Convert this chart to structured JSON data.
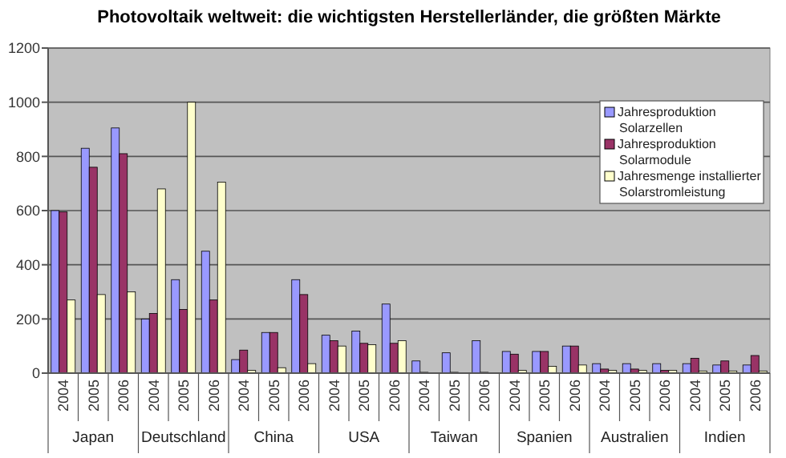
{
  "chart_data": {
    "type": "bar",
    "title": "Photovoltaik weltweit: die wichtigsten Herstellerländer, die größten Märkte",
    "categories": [
      "2004",
      "2005",
      "2006",
      "2004",
      "2005",
      "2006",
      "2004",
      "2005",
      "2006",
      "2004",
      "2005",
      "2006",
      "2004",
      "2005",
      "2006",
      "2004",
      "2005",
      "2006",
      "2004",
      "2005",
      "2006",
      "2004",
      "2005",
      "2006"
    ],
    "series": [
      {
        "name": "Jahresproduktion Solarzellen",
        "color": "#9999ff",
        "values": [
          600,
          830,
          905,
          200,
          345,
          450,
          50,
          150,
          345,
          140,
          155,
          255,
          45,
          75,
          120,
          80,
          80,
          100,
          35,
          35,
          35,
          35,
          30,
          30
        ]
      },
      {
        "name": "Jahresproduktion Solarmodule",
        "color": "#993366",
        "values": [
          595,
          760,
          810,
          220,
          235,
          270,
          85,
          150,
          290,
          120,
          110,
          110,
          3,
          3,
          3,
          70,
          80,
          100,
          15,
          15,
          10,
          55,
          45,
          65
        ]
      },
      {
        "name": "Jahresmenge installierter Solarstromleistung",
        "color": "#ffffcc",
        "values": [
          270,
          290,
          300,
          680,
          1000,
          705,
          10,
          20,
          35,
          100,
          105,
          120,
          0,
          0,
          0,
          10,
          25,
          30,
          10,
          10,
          10,
          8,
          8,
          8
        ]
      }
    ],
    "annotations": [
      "Japan",
      "Deutschland",
      "China",
      "USA",
      "Taiwan",
      "Spanien",
      "Australien",
      "Indien"
    ],
    "ylim": [
      0,
      1200
    ],
    "yticks": [
      0,
      200,
      400,
      600,
      800,
      1000,
      1200
    ],
    "grid": "y",
    "legend": "top right"
  }
}
